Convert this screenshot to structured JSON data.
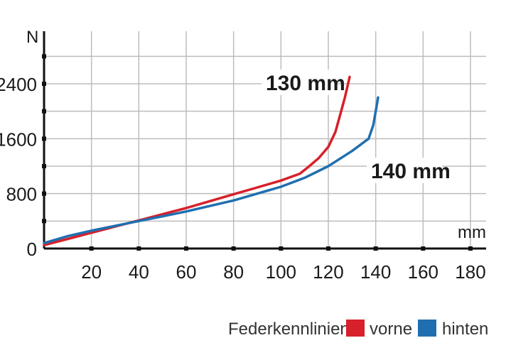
{
  "chart_data": {
    "type": "line",
    "x_unit": "mm",
    "y_unit": "N",
    "xlim": [
      0,
      185
    ],
    "ylim": [
      0,
      3000
    ],
    "x_ticks": [
      20,
      40,
      60,
      80,
      100,
      120,
      140,
      160,
      180
    ],
    "y_ticks": [
      0,
      800,
      1600,
      2400
    ],
    "x_tick_labels": [
      "20",
      "40",
      "60",
      "80",
      "100",
      "120",
      "140",
      "160",
      "180"
    ],
    "y_tick_labels": [
      "0",
      "800",
      "1600",
      "2400"
    ],
    "grid": true,
    "series": [
      {
        "color": "#d7202a",
        "points": [
          [
            0,
            50
          ],
          [
            10,
            140
          ],
          [
            20,
            230
          ],
          [
            30,
            320
          ],
          [
            40,
            410
          ],
          [
            50,
            500
          ],
          [
            60,
            590
          ],
          [
            70,
            690
          ],
          [
            80,
            790
          ],
          [
            90,
            890
          ],
          [
            100,
            990
          ],
          [
            108,
            1090
          ],
          [
            112,
            1200
          ],
          [
            116,
            1320
          ],
          [
            120,
            1480
          ],
          [
            123,
            1700
          ],
          [
            125,
            1950
          ],
          [
            127,
            2200
          ],
          [
            129,
            2500
          ]
        ]
      },
      {
        "color": "#1f6fb0",
        "points": [
          [
            0,
            80
          ],
          [
            10,
            180
          ],
          [
            20,
            260
          ],
          [
            30,
            330
          ],
          [
            40,
            400
          ],
          [
            50,
            470
          ],
          [
            60,
            540
          ],
          [
            70,
            620
          ],
          [
            80,
            700
          ],
          [
            90,
            800
          ],
          [
            100,
            900
          ],
          [
            110,
            1030
          ],
          [
            120,
            1200
          ],
          [
            130,
            1420
          ],
          [
            137,
            1600
          ],
          [
            139,
            1800
          ],
          [
            140,
            2000
          ],
          [
            141,
            2200
          ]
        ]
      }
    ],
    "annotations": [
      {
        "text": "130 mm",
        "series": 0
      },
      {
        "text": "140 mm",
        "series": 1
      }
    ],
    "legend": {
      "title": "Federkennlinien:",
      "position": "bottom-right",
      "items": [
        {
          "label": "vorne",
          "color": "#d7202a"
        },
        {
          "label": "hinten",
          "color": "#1f6fb0"
        }
      ]
    }
  }
}
